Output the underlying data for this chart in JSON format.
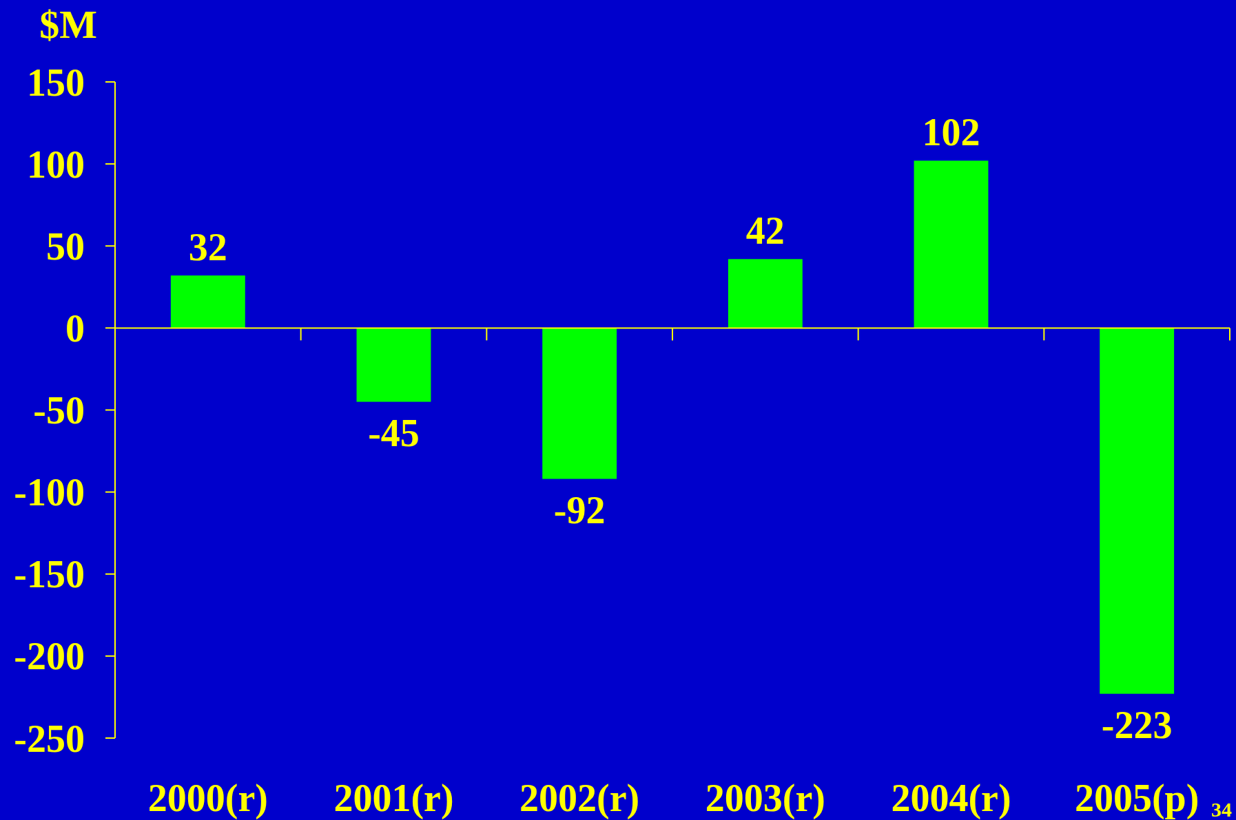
{
  "chart_data": {
    "type": "bar",
    "ylabel": "$M",
    "categories": [
      "2000(r)",
      "2001(r)",
      "2002(r)",
      "2003(r)",
      "2004(r)",
      "2005(p)"
    ],
    "values": [
      32,
      -45,
      -92,
      42,
      102,
      -223
    ],
    "color": "#00ff00",
    "ylim": [
      -250,
      150
    ],
    "yticks": [
      -250,
      -200,
      -150,
      -100,
      -50,
      0,
      50,
      100,
      150
    ],
    "data_labels": true,
    "grid": false,
    "ref_lines": [
      {
        "axis": "y",
        "value": 0,
        "color": "#ffff00"
      }
    ],
    "annotations": [
      "34"
    ]
  }
}
